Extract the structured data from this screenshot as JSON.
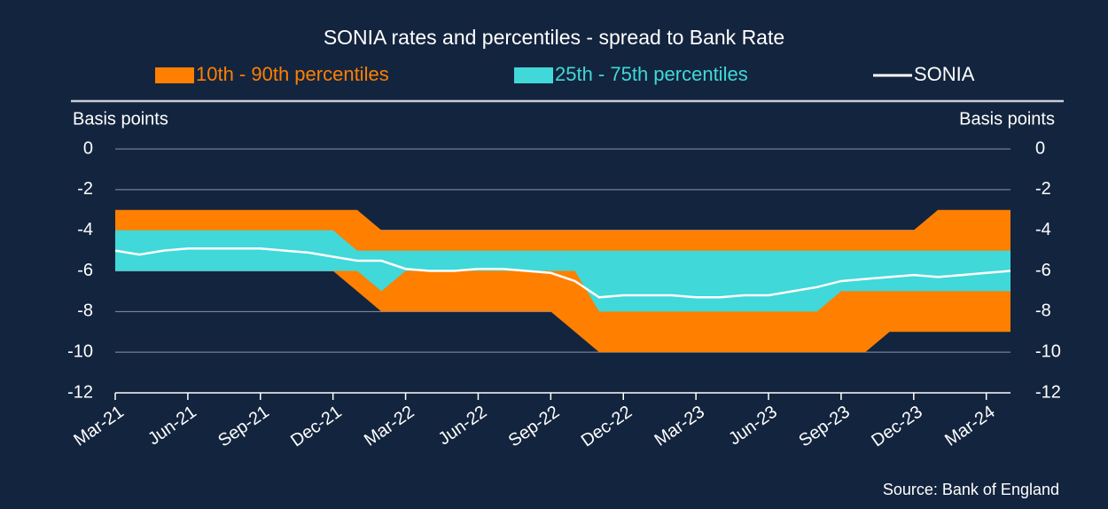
{
  "chart_data": {
    "type": "band-line",
    "title": "SONIA rates and percentiles - spread to Bank Rate",
    "ylabel": "Basis points",
    "y2label": "Basis points",
    "source": "Source: Bank of England",
    "x": [
      "2021-03",
      "2021-04",
      "2021-05",
      "2021-06",
      "2021-07",
      "2021-08",
      "2021-09",
      "2021-10",
      "2021-11",
      "2021-12",
      "2022-01",
      "2022-02",
      "2022-03",
      "2022-04",
      "2022-05",
      "2022-06",
      "2022-07",
      "2022-08",
      "2022-09",
      "2022-10",
      "2022-11",
      "2022-12",
      "2023-01",
      "2023-02",
      "2023-03",
      "2023-04",
      "2023-05",
      "2023-06",
      "2023-07",
      "2023-08",
      "2023-09",
      "2023-10",
      "2023-11",
      "2023-12",
      "2024-01",
      "2024-02",
      "2024-03",
      "2024-04"
    ],
    "xlim": [
      "2021-03",
      "2024-04"
    ],
    "xticks": [
      {
        "value": "2021-03",
        "label": "Mar-21"
      },
      {
        "value": "2021-06",
        "label": "Jun-21"
      },
      {
        "value": "2021-09",
        "label": "Sep-21"
      },
      {
        "value": "2021-12",
        "label": "Dec-21"
      },
      {
        "value": "2022-03",
        "label": "Mar-22"
      },
      {
        "value": "2022-06",
        "label": "Jun-22"
      },
      {
        "value": "2022-09",
        "label": "Sep-22"
      },
      {
        "value": "2022-12",
        "label": "Dec-22"
      },
      {
        "value": "2023-03",
        "label": "Mar-23"
      },
      {
        "value": "2023-06",
        "label": "Jun-23"
      },
      {
        "value": "2023-09",
        "label": "Sep-23"
      },
      {
        "value": "2023-12",
        "label": "Dec-23"
      },
      {
        "value": "2024-03",
        "label": "Mar-24"
      }
    ],
    "ylim": [
      -12,
      0
    ],
    "yticks": [
      -12,
      -10,
      -8,
      -6,
      -4,
      -2,
      0
    ],
    "grid": true,
    "series": [
      {
        "name": "10th - 90th percentiles",
        "color": "#ff7f00",
        "kind": "band",
        "high": [
          -3,
          -3,
          -3,
          -3,
          -3,
          -3,
          -3,
          -3,
          -3,
          -3,
          -3,
          -4,
          -4,
          -4,
          -4,
          -4,
          -4,
          -4,
          -4,
          -4,
          -4,
          -4,
          -4,
          -4,
          -4,
          -4,
          -4,
          -4,
          -4,
          -4,
          -4,
          -4,
          -4,
          -4,
          -3,
          -3,
          -3,
          -3
        ],
        "low": [
          -6,
          -6,
          -6,
          -6,
          -6,
          -6,
          -6,
          -6,
          -6,
          -6,
          -7,
          -8,
          -8,
          -8,
          -8,
          -8,
          -8,
          -8,
          -8,
          -9,
          -10,
          -10,
          -10,
          -10,
          -10,
          -10,
          -10,
          -10,
          -10,
          -10,
          -10,
          -10,
          -9,
          -9,
          -9,
          -9,
          -9,
          -9
        ]
      },
      {
        "name": "25th - 75th percentiles",
        "color": "#40d8d8",
        "kind": "band",
        "high": [
          -4,
          -4,
          -4,
          -4,
          -4,
          -4,
          -4,
          -4,
          -4,
          -4,
          -5,
          -5,
          -5,
          -5,
          -5,
          -5,
          -5,
          -5,
          -5,
          -5,
          -5,
          -5,
          -5,
          -5,
          -5,
          -5,
          -5,
          -5,
          -5,
          -5,
          -5,
          -5,
          -5,
          -5,
          -5,
          -5,
          -5,
          -5
        ],
        "low": [
          -6,
          -6,
          -6,
          -6,
          -6,
          -6,
          -6,
          -6,
          -6,
          -6,
          -6,
          -7,
          -6,
          -6,
          -6,
          -6,
          -6,
          -6,
          -6,
          -6,
          -8,
          -8,
          -8,
          -8,
          -8,
          -8,
          -8,
          -8,
          -8,
          -8,
          -7,
          -7,
          -7,
          -7,
          -7,
          -7,
          -7,
          -7
        ]
      },
      {
        "name": "SONIA",
        "color": "#ffffff",
        "kind": "line",
        "values": [
          -5.0,
          -5.2,
          -5.0,
          -4.9,
          -4.9,
          -4.9,
          -4.9,
          -5.0,
          -5.1,
          -5.3,
          -5.5,
          -5.5,
          -5.9,
          -6.0,
          -6.0,
          -5.9,
          -5.9,
          -6.0,
          -6.1,
          -6.5,
          -7.3,
          -7.2,
          -7.2,
          -7.2,
          -7.3,
          -7.3,
          -7.2,
          -7.2,
          -7.0,
          -6.8,
          -6.5,
          -6.4,
          -6.3,
          -6.2,
          -6.3,
          -6.2,
          -6.1,
          -6.0
        ]
      }
    ]
  }
}
